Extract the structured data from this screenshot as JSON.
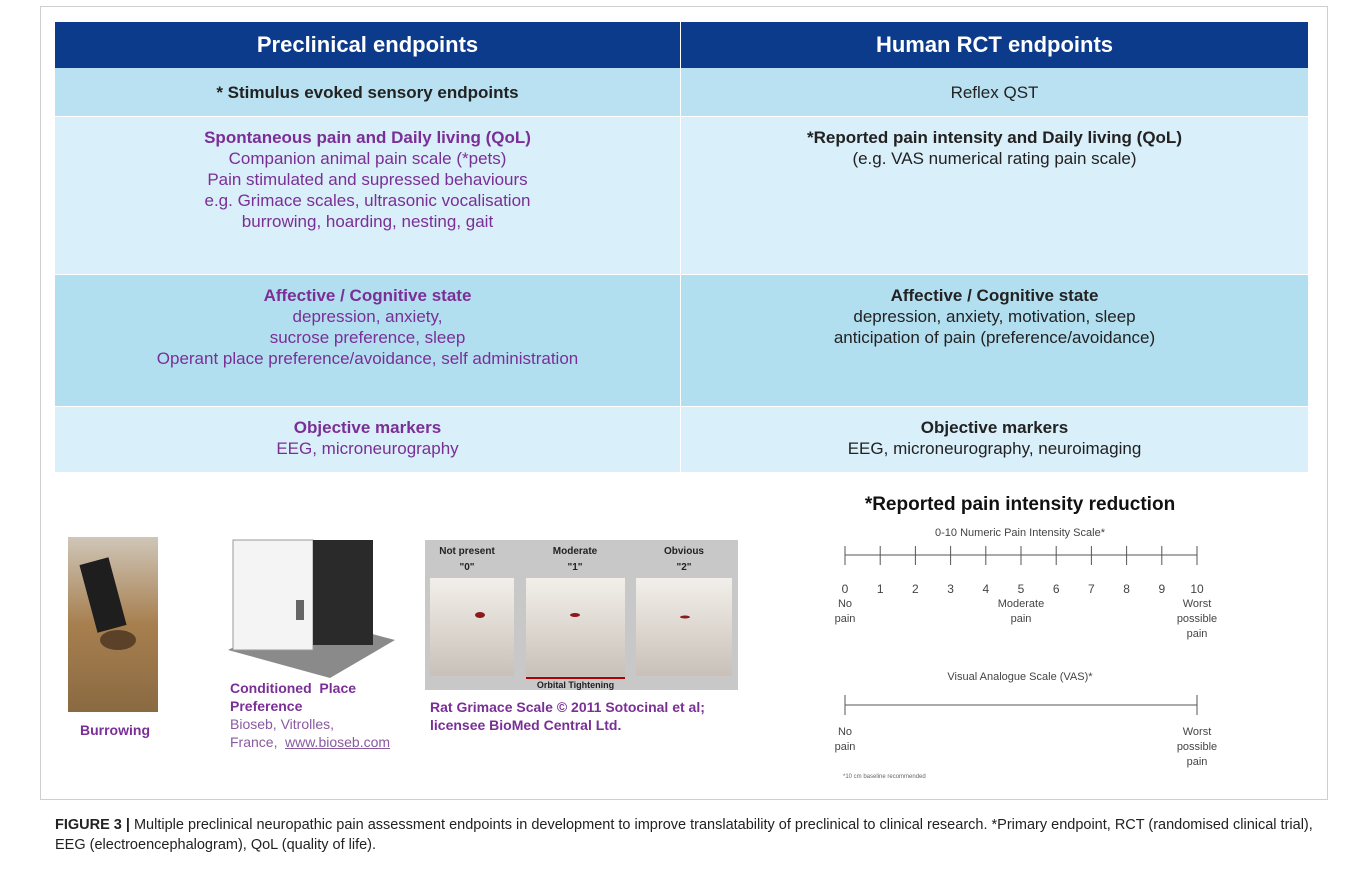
{
  "table": {
    "header": [
      "Preclinical endpoints",
      "Human RCT endpoints"
    ],
    "rows": [
      [
        {
          "heading": "* Stimulus evoked sensory endpoints"
        },
        {
          "lines": [
            "Reflex QST"
          ]
        }
      ],
      [
        {
          "heading": "Spontaneous pain and Daily living (QoL)",
          "lines": [
            "Companion animal pain scale (*pets)",
            "Pain stimulated and supressed behaviours",
            "e.g. Grimace scales, ultrasonic vocalisation",
            "burrowing, hoarding, nesting, gait"
          ]
        },
        {
          "heading": "*Reported pain intensity and Daily living (QoL)",
          "lines": [
            "(e.g. VAS numerical rating pain scale)"
          ]
        }
      ],
      [
        {
          "heading": "Affective / Cognitive state",
          "lines": [
            "depression, anxiety,",
            "sucrose preference, sleep",
            "Operant place preference/avoidance, self administration"
          ]
        },
        {
          "heading": "Affective / Cognitive state",
          "lines": [
            "depression, anxiety, motivation, sleep",
            "anticipation of pain (preference/avoidance)"
          ]
        }
      ],
      [
        {
          "heading": "Objective markers",
          "lines": [
            "EEG, microneurography"
          ]
        },
        {
          "heading": "Objective markers",
          "lines": [
            "EEG, microneurography,  neuroimaging"
          ]
        }
      ]
    ]
  },
  "images": {
    "burrowing": {
      "caption": "Burrowing"
    },
    "cpp": {
      "caption": [
        "Conditioned  Place",
        "Preference"
      ],
      "credit": [
        "Bioseb, Vitrolles,",
        "France,"
      ],
      "link": "www.bioseb.com"
    },
    "grimace": {
      "columns": [
        {
          "label": "Not present",
          "score": "\"0\""
        },
        {
          "label": "Moderate",
          "score": "\"1\""
        },
        {
          "label": "Obvious",
          "score": "\"2\""
        }
      ],
      "note": "Orbital Tightening",
      "caption": [
        "Rat Grimace Scale © 2011 Sotocinal et al;",
        "licensee BioMed Central Ltd."
      ]
    }
  },
  "pain_scale": {
    "title": "*Reported pain intensity reduction",
    "numeric": {
      "title": "0-10 Numeric Pain Intensity Scale*",
      "ticks": [
        0,
        1,
        2,
        3,
        4,
        5,
        6,
        7,
        8,
        9,
        10
      ],
      "anchors": [
        [
          "No",
          "pain"
        ],
        [
          "Moderate",
          "pain"
        ],
        [
          "Worst",
          "possible",
          "pain"
        ]
      ]
    },
    "vas": {
      "title": "Visual Analogue Scale (VAS)*",
      "anchors": [
        [
          "No",
          "pain"
        ],
        [
          "Worst",
          "possible",
          "pain"
        ]
      ],
      "note": "*10 cm baseline recommended"
    }
  },
  "caption": {
    "label": "FIGURE 3 |",
    "text": "Multiple preclinical neuropathic pain assessment endpoints in development to improve translatability of preclinical to clinical research. *Primary endpoint, RCT (randomised clinical trial), EEG (electroencephalogram), QoL (quality of life)."
  }
}
